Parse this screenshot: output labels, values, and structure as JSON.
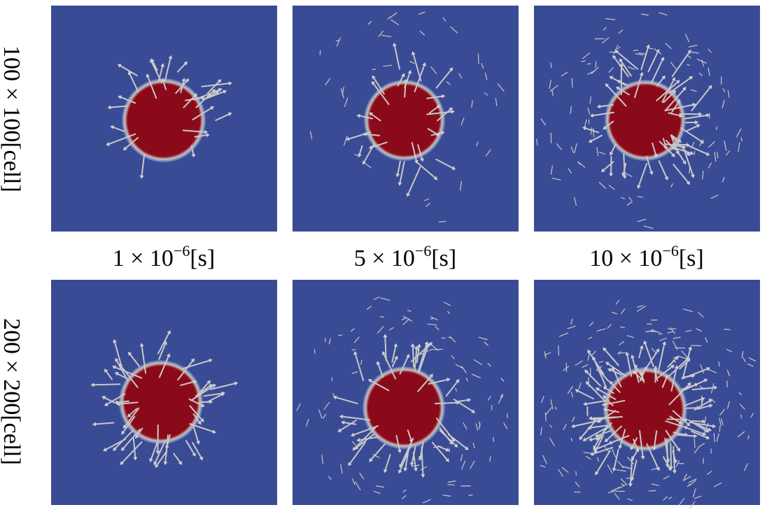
{
  "row_labels": [
    "100 × 100[cell]",
    "200 × 200[cell]"
  ],
  "column_labels": [
    {
      "mantissa": "1 × 10",
      "exponent": "−6",
      "unit": "[s]"
    },
    {
      "mantissa": "5 × 10",
      "exponent": "−6",
      "unit": "[s]"
    },
    {
      "mantissa": "10 × 10",
      "exponent": "−6",
      "unit": "[s]"
    }
  ]
}
